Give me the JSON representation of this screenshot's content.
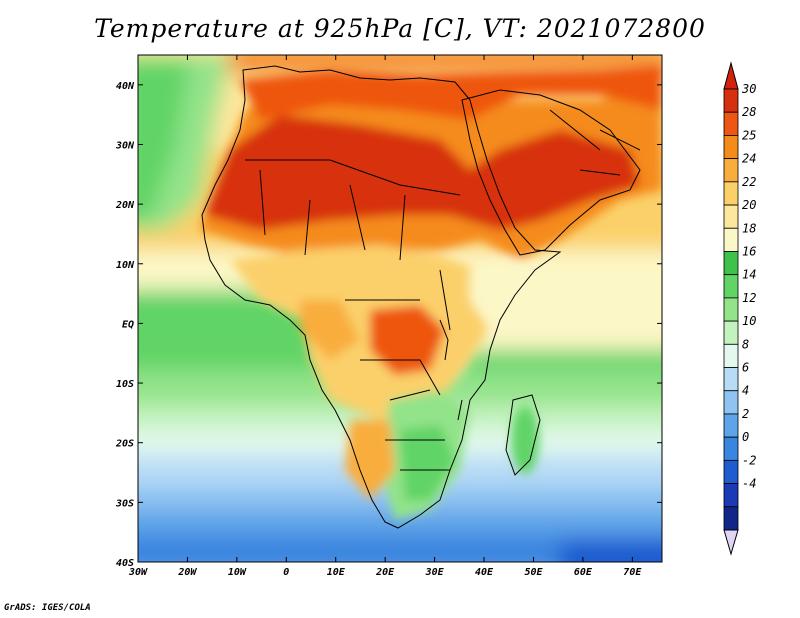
{
  "title": "Temperature at 925hPa [C], VT: 2021072800",
  "credit": "GrADS: IGES/COLA",
  "map": {
    "lon_range": [
      -30,
      76
    ],
    "lat_range": [
      -40,
      45
    ],
    "x_ticks": [
      {
        "lon": -30,
        "label": "30W"
      },
      {
        "lon": -20,
        "label": "20W"
      },
      {
        "lon": -10,
        "label": "10W"
      },
      {
        "lon": 0,
        "label": "0"
      },
      {
        "lon": 10,
        "label": "10E"
      },
      {
        "lon": 20,
        "label": "20E"
      },
      {
        "lon": 30,
        "label": "30E"
      },
      {
        "lon": 40,
        "label": "40E"
      },
      {
        "lon": 50,
        "label": "50E"
      },
      {
        "lon": 60,
        "label": "60E"
      },
      {
        "lon": 70,
        "label": "70E"
      }
    ],
    "y_ticks": [
      {
        "lat": 40,
        "label": "40N"
      },
      {
        "lat": 30,
        "label": "30N"
      },
      {
        "lat": 20,
        "label": "20N"
      },
      {
        "lat": 10,
        "label": "10N"
      },
      {
        "lat": 0,
        "label": "EQ"
      },
      {
        "lat": -10,
        "label": "10S"
      },
      {
        "lat": -20,
        "label": "20S"
      },
      {
        "lat": -30,
        "label": "30S"
      },
      {
        "lat": -40,
        "label": "40S"
      }
    ]
  },
  "colorbar": {
    "labels": [
      "30",
      "28",
      "25",
      "24",
      "22",
      "20",
      "18",
      "16",
      "14",
      "12",
      "10",
      "8",
      "6",
      "4",
      "2",
      "0",
      "-2",
      "-4"
    ],
    "colors": [
      "#d7300f",
      "#ee5711",
      "#f58b1b",
      "#f9ad3d",
      "#fbd06a",
      "#fde79c",
      "#fcf7c6",
      "#3fc24c",
      "#61d466",
      "#93e38a",
      "#c4f2bf",
      "#e3f9ed",
      "#b9dcf6",
      "#8fc3f1",
      "#5ea4e8",
      "#3a85df",
      "#1f5cd0",
      "#1a3ab6",
      "#122588"
    ],
    "top_color": "#d3220c",
    "bottom_color": "#e0d5f5"
  }
}
